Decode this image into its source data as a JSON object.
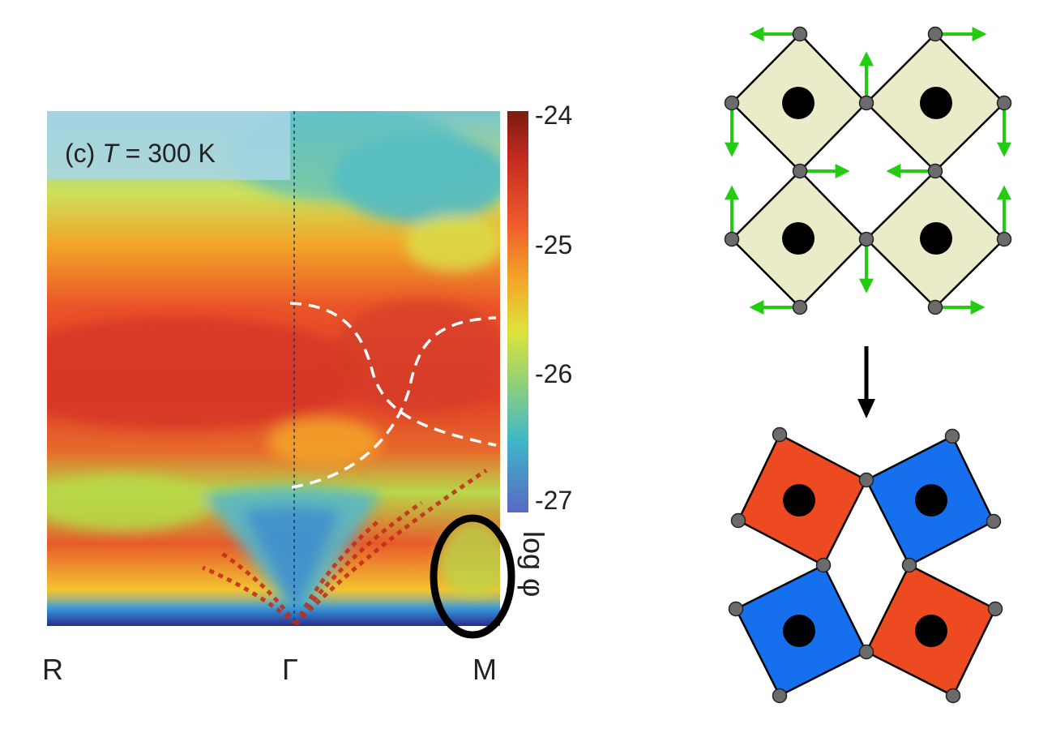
{
  "panel": {
    "label_prefix": "(c) ",
    "label_var": "T",
    "label_suffix": " = 300 K"
  },
  "axis": {
    "x_ticks": [
      "R",
      "Γ",
      "M"
    ],
    "colorbar_ticks": [
      "-24",
      "-25",
      "-26",
      "-27"
    ],
    "colorbar_label": "log φ"
  },
  "colors": {
    "arrow": "#22cc11",
    "octa_plain": "#ecebc9",
    "octa_red": "#ee4a22",
    "octa_blue": "#1670ee",
    "atom_vertex": "#6b6b6b",
    "atom_center": "#000000",
    "dashed_curve": "#ffffff",
    "highlight_ellipse": "#000000"
  },
  "icons": {
    "transition": "down-arrow-icon"
  }
}
